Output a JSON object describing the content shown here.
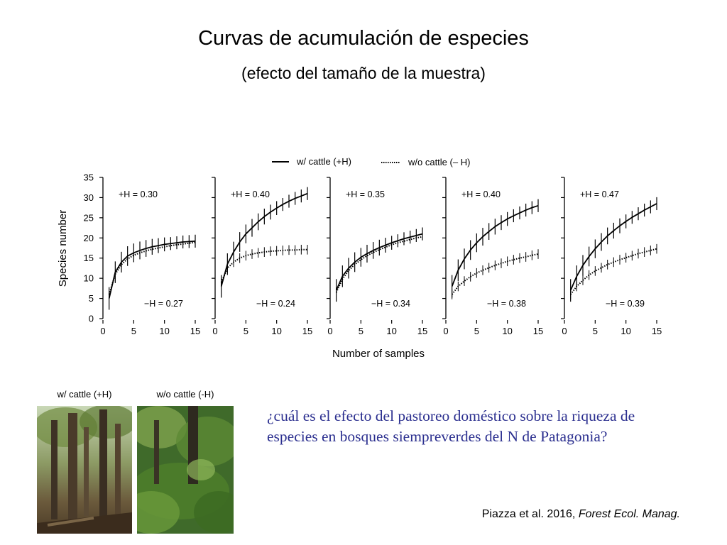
{
  "title": "Curvas de acumulación de especies",
  "subtitle": "(efecto del tamaño de la muestra)",
  "chart_data": {
    "type": "line",
    "ylabel": "Species number",
    "xlabel": "Number of samples",
    "ylim": [
      0,
      35
    ],
    "xlim": [
      0,
      15
    ],
    "y_ticks": [
      "0",
      "5",
      "10",
      "15",
      "20",
      "25",
      "30",
      "35"
    ],
    "x_ticks": [
      "0",
      "5",
      "10",
      "15"
    ],
    "legend": [
      {
        "label": "w/ cattle (+H)",
        "style": "solid"
      },
      {
        "label": "w/o cattle (– H)",
        "style": "dotted"
      }
    ],
    "legend_position": "top-center",
    "panels": [
      {
        "plus_label": "+H = 0.30",
        "minus_label": "−H = 0.27",
        "plus_series": [
          [
            1,
            5
          ],
          [
            2,
            11.5
          ],
          [
            3,
            14
          ],
          [
            4,
            15.5
          ],
          [
            5,
            16.3
          ],
          [
            6,
            16.9
          ],
          [
            7,
            17.4
          ],
          [
            8,
            17.8
          ],
          [
            9,
            18.1
          ],
          [
            10,
            18.4
          ],
          [
            11,
            18.6
          ],
          [
            12,
            18.8
          ],
          [
            13,
            19
          ],
          [
            14,
            19.1
          ],
          [
            15,
            19.2
          ]
        ],
        "minus_series": [
          [
            1,
            6
          ],
          [
            2,
            11
          ],
          [
            3,
            13.4
          ],
          [
            4,
            14.8
          ],
          [
            5,
            15.7
          ],
          [
            6,
            16.3
          ],
          [
            7,
            16.8
          ],
          [
            8,
            17.2
          ],
          [
            9,
            17.5
          ],
          [
            10,
            17.8
          ],
          [
            11,
            18.1
          ],
          [
            12,
            18.3
          ],
          [
            13,
            18.5
          ],
          [
            14,
            18.7
          ],
          [
            15,
            18.9
          ]
        ]
      },
      {
        "plus_label": "+H = 0.40",
        "minus_label": "−H = 0.24",
        "plus_series": [
          [
            1,
            8
          ],
          [
            2,
            13.5
          ],
          [
            3,
            16.5
          ],
          [
            4,
            19
          ],
          [
            5,
            21
          ],
          [
            6,
            22.5
          ],
          [
            7,
            24
          ],
          [
            8,
            25.3
          ],
          [
            9,
            26.4
          ],
          [
            10,
            27.4
          ],
          [
            11,
            28.3
          ],
          [
            12,
            29.1
          ],
          [
            13,
            29.8
          ],
          [
            14,
            30.4
          ],
          [
            15,
            31
          ]
        ],
        "minus_series": [
          [
            1,
            9
          ],
          [
            2,
            12.5
          ],
          [
            3,
            14
          ],
          [
            4,
            15
          ],
          [
            5,
            15.6
          ],
          [
            6,
            16
          ],
          [
            7,
            16.3
          ],
          [
            8,
            16.5
          ],
          [
            9,
            16.7
          ],
          [
            10,
            16.8
          ],
          [
            11,
            16.9
          ],
          [
            12,
            17
          ],
          [
            13,
            17
          ],
          [
            14,
            17.1
          ],
          [
            15,
            17.1
          ]
        ]
      },
      {
        "plus_label": "+H = 0.35",
        "minus_label": "−H = 0.34",
        "plus_series": [
          [
            1,
            7
          ],
          [
            2,
            10.5
          ],
          [
            3,
            12.5
          ],
          [
            4,
            14
          ],
          [
            5,
            15.2
          ],
          [
            6,
            16.1
          ],
          [
            7,
            16.9
          ],
          [
            8,
            17.6
          ],
          [
            9,
            18.2
          ],
          [
            10,
            18.8
          ],
          [
            11,
            19.3
          ],
          [
            12,
            19.8
          ],
          [
            13,
            20.2
          ],
          [
            14,
            20.6
          ],
          [
            15,
            21
          ]
        ],
        "minus_series": [
          [
            1,
            6.5
          ],
          [
            2,
            9.8
          ],
          [
            3,
            11.9
          ],
          [
            4,
            13.4
          ],
          [
            5,
            14.6
          ],
          [
            6,
            15.6
          ],
          [
            7,
            16.4
          ],
          [
            8,
            17.1
          ],
          [
            9,
            17.7
          ],
          [
            10,
            18.3
          ],
          [
            11,
            18.8
          ],
          [
            12,
            19.2
          ],
          [
            13,
            19.6
          ],
          [
            14,
            20
          ],
          [
            15,
            20.3
          ]
        ]
      },
      {
        "plus_label": "+H = 0.40",
        "minus_label": "−H = 0.38",
        "plus_series": [
          [
            1,
            8
          ],
          [
            2,
            12
          ],
          [
            3,
            14.8
          ],
          [
            4,
            17
          ],
          [
            5,
            18.8
          ],
          [
            6,
            20.3
          ],
          [
            7,
            21.6
          ],
          [
            8,
            22.8
          ],
          [
            9,
            23.8
          ],
          [
            10,
            24.7
          ],
          [
            11,
            25.5
          ],
          [
            12,
            26.2
          ],
          [
            13,
            26.9
          ],
          [
            14,
            27.5
          ],
          [
            15,
            28
          ]
        ],
        "minus_series": [
          [
            1,
            6
          ],
          [
            2,
            8
          ],
          [
            3,
            9.3
          ],
          [
            4,
            10.4
          ],
          [
            5,
            11.3
          ],
          [
            6,
            12
          ],
          [
            7,
            12.6
          ],
          [
            8,
            13.2
          ],
          [
            9,
            13.7
          ],
          [
            10,
            14.2
          ],
          [
            11,
            14.6
          ],
          [
            12,
            15
          ],
          [
            13,
            15.3
          ],
          [
            14,
            15.7
          ],
          [
            15,
            16
          ]
        ],
        "plus_error_bars": true
      },
      {
        "plus_label": "+H = 0.47",
        "minus_label": "−H = 0.39",
        "plus_series": [
          [
            1,
            7
          ],
          [
            2,
            10.5
          ],
          [
            3,
            13.2
          ],
          [
            4,
            15.4
          ],
          [
            5,
            17.3
          ],
          [
            6,
            19
          ],
          [
            7,
            20.5
          ],
          [
            8,
            21.8
          ],
          [
            9,
            23
          ],
          [
            10,
            24.1
          ],
          [
            11,
            25.1
          ],
          [
            12,
            26
          ],
          [
            13,
            26.9
          ],
          [
            14,
            27.7
          ],
          [
            15,
            28.5
          ]
        ],
        "minus_series": [
          [
            1,
            6
          ],
          [
            2,
            8
          ],
          [
            3,
            9.5
          ],
          [
            4,
            10.8
          ],
          [
            5,
            11.8
          ],
          [
            6,
            12.6
          ],
          [
            7,
            13.4
          ],
          [
            8,
            14
          ],
          [
            9,
            14.6
          ],
          [
            10,
            15.1
          ],
          [
            11,
            15.6
          ],
          [
            12,
            16.1
          ],
          [
            13,
            16.5
          ],
          [
            14,
            16.9
          ],
          [
            15,
            17.3
          ]
        ]
      }
    ]
  },
  "photos": [
    {
      "label": "w/ cattle (+H)"
    },
    {
      "label": "w/o cattle (-H)"
    }
  ],
  "question": "¿cuál es el efecto del pastoreo doméstico sobre la riqueza de especies en bosques siempreverdes del N de Patagonia?",
  "citation": {
    "authors": "Piazza et al. 2016, ",
    "journal": "Forest Ecol. Manag."
  },
  "colors": {
    "question_text": "#2b2f8f",
    "ink": "#000000"
  }
}
